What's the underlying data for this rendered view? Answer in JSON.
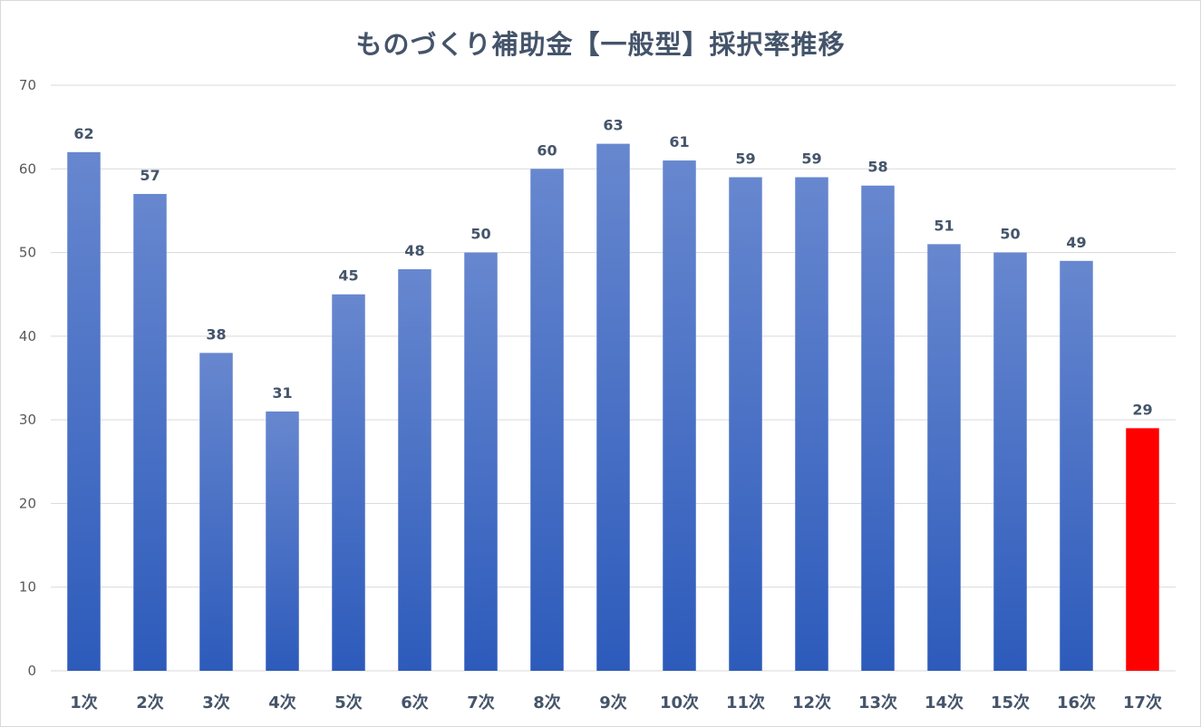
{
  "chart_data": {
    "type": "bar",
    "title": "ものづくり補助金【一般型】採択率推移",
    "xlabel": "",
    "ylabel": "",
    "ylim": [
      0,
      70
    ],
    "yticks": [
      0,
      10,
      20,
      30,
      40,
      50,
      60,
      70
    ],
    "grid": true,
    "legend": "none",
    "categories": [
      "1次",
      "2次",
      "3次",
      "4次",
      "5次",
      "6次",
      "7次",
      "8次",
      "9次",
      "10次",
      "11次",
      "12次",
      "13次",
      "14次",
      "15次",
      "16次",
      "17次"
    ],
    "values": [
      62,
      57,
      38,
      31,
      45,
      48,
      50,
      60,
      63,
      61,
      59,
      59,
      58,
      51,
      50,
      49,
      29
    ],
    "highlight_index": 16,
    "colors": {
      "bar_top": "#6787cf",
      "bar_bottom": "#2d5bbb",
      "highlight": "#ff0000",
      "grid": "#d9d9d9",
      "title": "#44546a"
    }
  }
}
